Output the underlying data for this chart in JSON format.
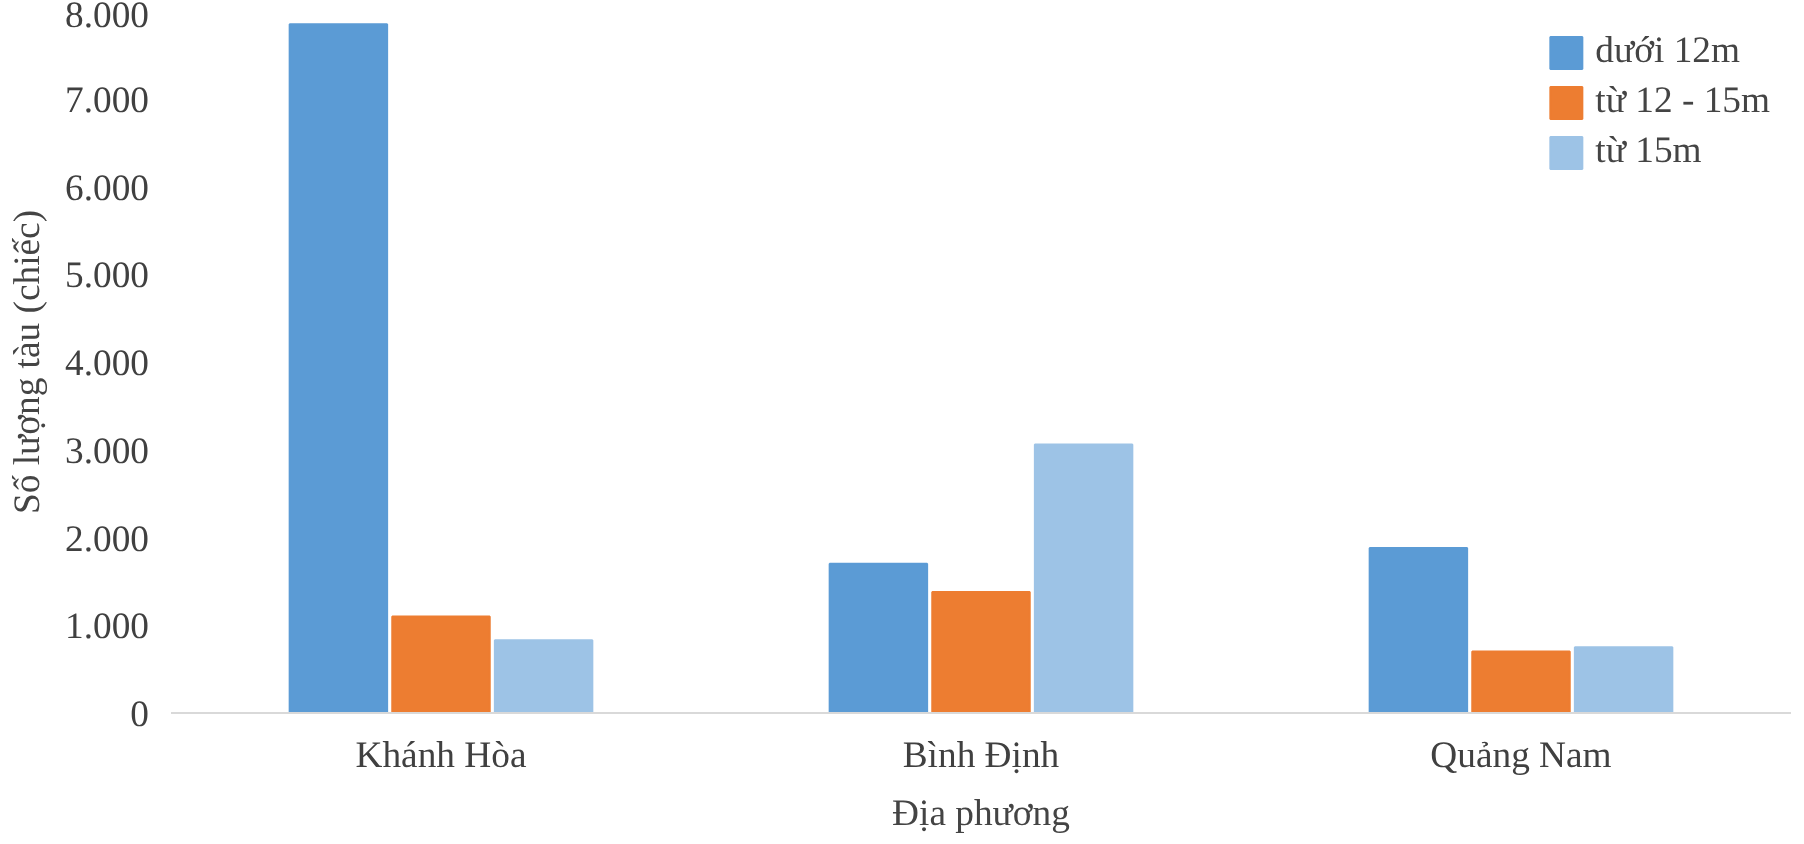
{
  "chart_data": {
    "type": "bar",
    "xlabel": "Địa phương",
    "ylabel": "Số lượng tàu (chiếc)",
    "categories": [
      "Khánh Hòa",
      "Bình Định",
      "Quảng Nam"
    ],
    "series": [
      {
        "name": "dưới 12m",
        "color": "#5b9bd5",
        "values": [
          7850,
          1700,
          1880
        ]
      },
      {
        "name": "từ 12 - 15m",
        "color": "#ed7d31",
        "values": [
          1100,
          1380,
          700
        ]
      },
      {
        "name": "từ 15m",
        "color": "#9dc3e6",
        "values": [
          830,
          3060,
          750
        ]
      }
    ],
    "ylim": [
      0,
      8000
    ],
    "yticks": [
      0,
      {
        "value": 1000,
        "label": "1.000"
      },
      {
        "value": 2000,
        "label": "2.000"
      },
      {
        "value": 3000,
        "label": "3.000"
      },
      {
        "value": 4000,
        "label": "4.000"
      },
      {
        "value": 5000,
        "label": "5.000"
      },
      {
        "value": 6000,
        "label": "6.000"
      },
      {
        "value": 7000,
        "label": "7.000"
      },
      {
        "value": 8000,
        "label": "8.000"
      }
    ],
    "grid": false,
    "legend": "top right"
  }
}
